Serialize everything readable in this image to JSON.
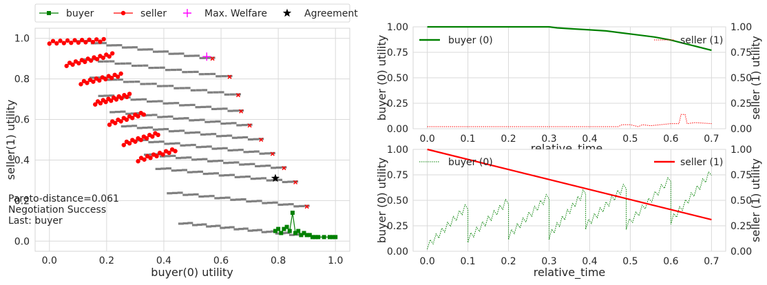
{
  "legend": [
    {
      "label": "buyer",
      "color": "#008000",
      "marker": "square"
    },
    {
      "label": "seller",
      "color": "#ff0000",
      "marker": "circle"
    },
    {
      "label": "Max. Welfare",
      "color": "#ff00ff",
      "marker": "plus"
    },
    {
      "label": "Agreement",
      "color": "#000000",
      "marker": "star"
    }
  ],
  "colors": {
    "buyer": "#008000",
    "seller": "#ff0000",
    "grey": "#808080",
    "welfare": "#ff00ff",
    "grid": "#d9d9d9"
  },
  "chart_data": [
    {
      "type": "scatter",
      "xlabel": "buyer(0) utility",
      "ylabel": "seller(1) utility",
      "xlim": [
        -0.05,
        1.05
      ],
      "ylim": [
        -0.05,
        1.05
      ],
      "xticks": [
        "0.0",
        "0.2",
        "0.4",
        "0.6",
        "0.8",
        "1.0"
      ],
      "yticks": [
        "0.0",
        "0.2",
        "0.4",
        "0.6",
        "0.8",
        "1.0"
      ],
      "annotation": [
        "Pareto-distance=0.061",
        "Negotiation Success",
        "Last: buyer"
      ],
      "max_welfare": [
        0.55,
        0.91
      ],
      "agreement": [
        0.79,
        0.31
      ],
      "outcome_lines": [
        {
          "x0": 0.1,
          "y0": 0.99,
          "x1": 0.57,
          "y1": 0.9
        },
        {
          "x0": 0.12,
          "y0": 0.9,
          "x1": 0.63,
          "y1": 0.81
        },
        {
          "x0": 0.15,
          "y0": 0.81,
          "x1": 0.66,
          "y1": 0.72
        },
        {
          "x0": 0.18,
          "y0": 0.72,
          "x1": 0.67,
          "y1": 0.64
        },
        {
          "x0": 0.22,
          "y0": 0.64,
          "x1": 0.7,
          "y1": 0.57
        },
        {
          "x0": 0.26,
          "y0": 0.57,
          "x1": 0.74,
          "y1": 0.5
        },
        {
          "x0": 0.3,
          "y0": 0.5,
          "x1": 0.78,
          "y1": 0.43
        },
        {
          "x0": 0.34,
          "y0": 0.43,
          "x1": 0.82,
          "y1": 0.36
        },
        {
          "x0": 0.38,
          "y0": 0.36,
          "x1": 0.86,
          "y1": 0.29
        },
        {
          "x0": 0.42,
          "y0": 0.24,
          "x1": 0.9,
          "y1": 0.17
        },
        {
          "x0": 0.46,
          "y0": 0.09,
          "x1": 0.88,
          "y1": 0.03
        }
      ],
      "seller_segments": [
        {
          "x0": 0.0,
          "y0": 0.98,
          "x1": 0.19,
          "y1": 0.99,
          "n": 16
        },
        {
          "x0": 0.06,
          "y0": 0.87,
          "x1": 0.22,
          "y1": 0.92,
          "n": 16
        },
        {
          "x0": 0.11,
          "y0": 0.78,
          "x1": 0.25,
          "y1": 0.82,
          "n": 14
        },
        {
          "x0": 0.16,
          "y0": 0.68,
          "x1": 0.28,
          "y1": 0.72,
          "n": 14
        },
        {
          "x0": 0.21,
          "y0": 0.58,
          "x1": 0.33,
          "y1": 0.63,
          "n": 13
        },
        {
          "x0": 0.26,
          "y0": 0.48,
          "x1": 0.38,
          "y1": 0.53,
          "n": 13
        },
        {
          "x0": 0.31,
          "y0": 0.4,
          "x1": 0.44,
          "y1": 0.45,
          "n": 13
        }
      ],
      "buyer_path": [
        [
          0.79,
          0.05
        ],
        [
          0.8,
          0.06
        ],
        [
          0.81,
          0.04
        ],
        [
          0.82,
          0.06
        ],
        [
          0.83,
          0.07
        ],
        [
          0.84,
          0.05
        ],
        [
          0.85,
          0.14
        ],
        [
          0.86,
          0.04
        ],
        [
          0.87,
          0.05
        ],
        [
          0.88,
          0.03
        ],
        [
          0.89,
          0.04
        ],
        [
          0.9,
          0.03
        ],
        [
          0.91,
          0.03
        ],
        [
          0.92,
          0.02
        ],
        [
          0.93,
          0.02
        ],
        [
          0.94,
          0.02
        ],
        [
          0.96,
          0.02
        ],
        [
          0.98,
          0.02
        ],
        [
          0.99,
          0.02
        ],
        [
          1.0,
          0.02
        ]
      ]
    },
    {
      "type": "line",
      "xlabel": "relative_time",
      "ylabel": "buyer (0) utility",
      "ylabel_right": "seller (1) utility",
      "xlim": [
        -0.035,
        0.735
      ],
      "ylim": [
        0.0,
        1.0
      ],
      "xticks": [
        "0.0",
        "0.1",
        "0.2",
        "0.3",
        "0.4",
        "0.5",
        "0.6",
        "0.7"
      ],
      "yticks": [
        "0.00",
        "0.25",
        "0.50",
        "0.75",
        "1.00"
      ],
      "series": [
        {
          "name": "buyer (0)",
          "color": "#008000",
          "style": "solid",
          "x": [
            0.0,
            0.1,
            0.2,
            0.3,
            0.32,
            0.36,
            0.4,
            0.44,
            0.48,
            0.52,
            0.56,
            0.6,
            0.63,
            0.66,
            0.69,
            0.7
          ],
          "y": [
            1.0,
            1.0,
            1.0,
            1.0,
            0.99,
            0.98,
            0.97,
            0.96,
            0.94,
            0.92,
            0.9,
            0.87,
            0.84,
            0.81,
            0.78,
            0.77
          ]
        },
        {
          "name": "seller (1)",
          "color": "#ff0000",
          "style": "dotted",
          "x": [
            0.0,
            0.1,
            0.2,
            0.3,
            0.4,
            0.47,
            0.48,
            0.5,
            0.52,
            0.53,
            0.55,
            0.6,
            0.62,
            0.625,
            0.635,
            0.64,
            0.66,
            0.7
          ],
          "y": [
            0.02,
            0.02,
            0.02,
            0.02,
            0.02,
            0.02,
            0.04,
            0.04,
            0.02,
            0.04,
            0.03,
            0.05,
            0.05,
            0.14,
            0.14,
            0.05,
            0.06,
            0.05
          ]
        }
      ]
    },
    {
      "type": "line",
      "xlabel": "relative_time",
      "ylabel": "buyer (0) utility",
      "ylabel_right": "seller (1) utility",
      "xlim": [
        -0.035,
        0.735
      ],
      "ylim": [
        0.0,
        1.0
      ],
      "xticks": [
        "0.0",
        "0.1",
        "0.2",
        "0.3",
        "0.4",
        "0.5",
        "0.6",
        "0.7"
      ],
      "yticks": [
        "0.00",
        "0.25",
        "0.50",
        "0.75",
        "1.00"
      ],
      "series": [
        {
          "name": "buyer (0)",
          "color": "#008000",
          "style": "dotted",
          "cycles": [
            {
              "t0": 0.0,
              "t1": 0.1,
              "lo": 0.05,
              "hi": 0.45
            },
            {
              "t0": 0.1,
              "t1": 0.2,
              "lo": 0.12,
              "hi": 0.5
            },
            {
              "t0": 0.2,
              "t1": 0.3,
              "lo": 0.15,
              "hi": 0.55
            },
            {
              "t0": 0.3,
              "t1": 0.39,
              "lo": 0.15,
              "hi": 0.6
            },
            {
              "t0": 0.39,
              "t1": 0.49,
              "lo": 0.25,
              "hi": 0.65
            },
            {
              "t0": 0.49,
              "t1": 0.6,
              "lo": 0.25,
              "hi": 0.72
            },
            {
              "t0": 0.6,
              "t1": 0.7,
              "lo": 0.3,
              "hi": 0.78
            }
          ]
        },
        {
          "name": "seller (1)",
          "color": "#ff0000",
          "style": "solid",
          "x": [
            0.0,
            0.7
          ],
          "y": [
            1.0,
            0.31
          ]
        }
      ]
    }
  ]
}
